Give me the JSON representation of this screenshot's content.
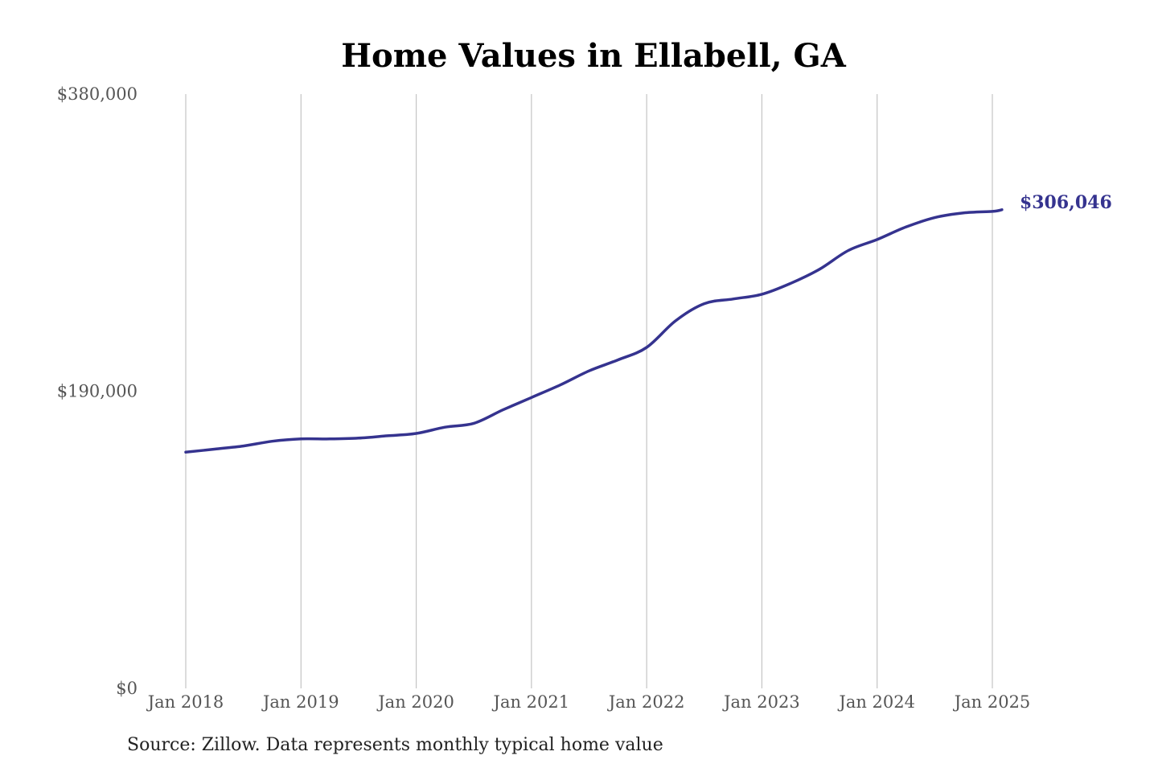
{
  "source_note": "Source: Zillow. Data represents monthly typical home value",
  "colors": {
    "line": "#35338f",
    "grid": "#c4c4c4",
    "tick_text": "#555555"
  },
  "chart_data": {
    "type": "line",
    "title": "Home Values in Ellabell, GA",
    "xlabel": "",
    "ylabel": "",
    "ylim": [
      0,
      380000
    ],
    "xlim": [
      "2018-01",
      "2025-02"
    ],
    "grid": {
      "vertical": true,
      "horizontal": false
    },
    "y_ticks": [
      {
        "value": 0,
        "label": "$0"
      },
      {
        "value": 190000,
        "label": "$190,000"
      },
      {
        "value": 380000,
        "label": "$380,000"
      }
    ],
    "x_ticks": [
      {
        "value": "2018-01",
        "label": "Jan 2018"
      },
      {
        "value": "2019-01",
        "label": "Jan 2019"
      },
      {
        "value": "2020-01",
        "label": "Jan 2020"
      },
      {
        "value": "2021-01",
        "label": "Jan 2021"
      },
      {
        "value": "2022-01",
        "label": "Jan 2022"
      },
      {
        "value": "2023-01",
        "label": "Jan 2023"
      },
      {
        "value": "2024-01",
        "label": "Jan 2024"
      },
      {
        "value": "2025-01",
        "label": "Jan 2025"
      }
    ],
    "end_label": "$306,046",
    "series": [
      {
        "values": [
          {
            "x": "2018-01",
            "y": 151000
          },
          {
            "x": "2018-04",
            "y": 153000
          },
          {
            "x": "2018-07",
            "y": 155000
          },
          {
            "x": "2018-10",
            "y": 158000
          },
          {
            "x": "2019-01",
            "y": 159500
          },
          {
            "x": "2019-04",
            "y": 159500
          },
          {
            "x": "2019-07",
            "y": 160000
          },
          {
            "x": "2019-10",
            "y": 161500
          },
          {
            "x": "2020-01",
            "y": 163000
          },
          {
            "x": "2020-04",
            "y": 167000
          },
          {
            "x": "2020-07",
            "y": 169500
          },
          {
            "x": "2020-10",
            "y": 178000
          },
          {
            "x": "2021-01",
            "y": 186000
          },
          {
            "x": "2021-04",
            "y": 194000
          },
          {
            "x": "2021-07",
            "y": 203000
          },
          {
            "x": "2021-10",
            "y": 210000
          },
          {
            "x": "2022-01",
            "y": 218000
          },
          {
            "x": "2022-04",
            "y": 235000
          },
          {
            "x": "2022-07",
            "y": 246000
          },
          {
            "x": "2022-10",
            "y": 249000
          },
          {
            "x": "2023-01",
            "y": 252000
          },
          {
            "x": "2023-04",
            "y": 259000
          },
          {
            "x": "2023-07",
            "y": 268000
          },
          {
            "x": "2023-10",
            "y": 280000
          },
          {
            "x": "2024-01",
            "y": 287000
          },
          {
            "x": "2024-04",
            "y": 295000
          },
          {
            "x": "2024-07",
            "y": 301000
          },
          {
            "x": "2024-10",
            "y": 304000
          },
          {
            "x": "2025-01",
            "y": 305000
          },
          {
            "x": "2025-02",
            "y": 306046
          }
        ]
      }
    ]
  }
}
